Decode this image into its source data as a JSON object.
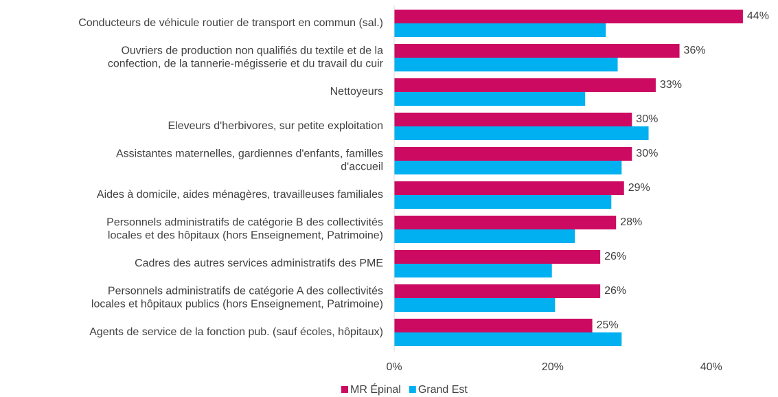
{
  "chart_data": {
    "type": "bar",
    "orientation": "horizontal",
    "categories": [
      "Conducteurs de véhicule routier de transport en commun (sal.)",
      "Ouvriers de production non qualifiés du textile et de la\nconfection, de la tannerie-mégisserie et du travail du cuir",
      "Nettoyeurs",
      "Eleveurs d'herbivores, sur petite exploitation",
      "Assistantes maternelles, gardiennes d'enfants, familles\nd'accueil",
      "Aides à domicile, aides ménagères, travailleuses familiales",
      "Personnels administratifs de catégorie B des collectivités\nlocales et des hôpitaux (hors Enseignement, Patrimoine)",
      "Cadres des autres services administratifs des PME",
      "Personnels administratifs de catégorie A des collectivités\nlocales et hôpitaux publics (hors Enseignement, Patrimoine)",
      "Agents de service de la fonction pub. (sauf écoles, hôpitaux)"
    ],
    "series": [
      {
        "name": "MR Épinal",
        "color": "#cc0a62",
        "values": [
          44,
          36,
          33,
          30,
          30,
          29,
          28,
          26,
          26,
          25
        ],
        "value_labels": [
          "44%",
          "36%",
          "33%",
          "30%",
          "30%",
          "29%",
          "28%",
          "26%",
          "26%",
          "25%"
        ]
      },
      {
        "name": "Grand Est",
        "color": "#00b0f0",
        "values": [
          26.7,
          28.2,
          24.1,
          32.1,
          28.7,
          27.4,
          22.8,
          19.9,
          20.3,
          28.7
        ]
      }
    ],
    "xlim": [
      0,
      47.3
    ],
    "xticks": [
      {
        "value": 0,
        "label": "0%"
      },
      {
        "value": 20,
        "label": "20%"
      },
      {
        "value": 40,
        "label": "40%"
      }
    ],
    "grid": false,
    "legend": "bottom"
  }
}
